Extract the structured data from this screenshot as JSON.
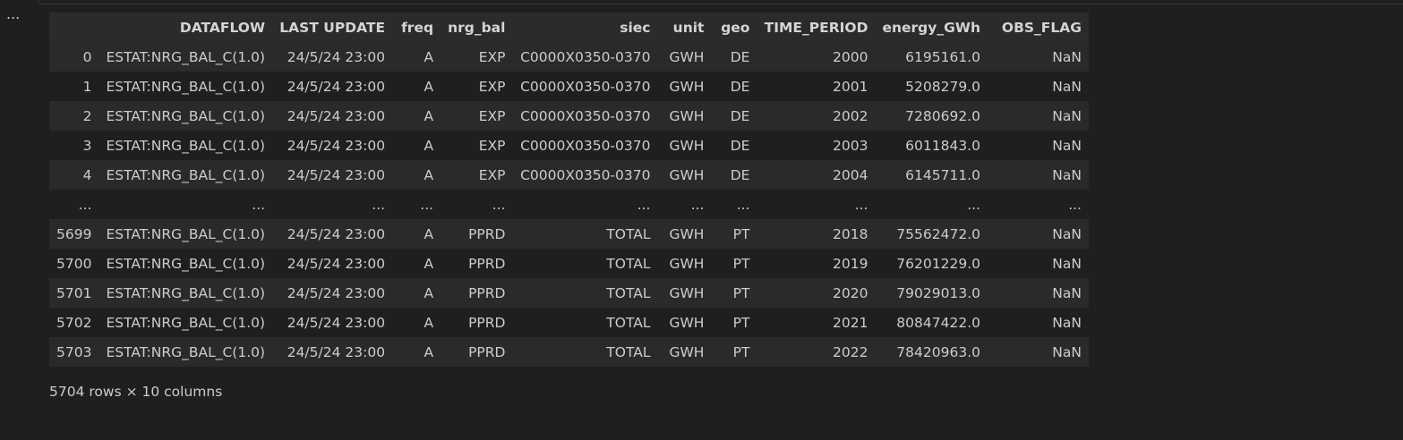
{
  "toolbar": {
    "more_label": "..."
  },
  "table": {
    "columns": [
      "",
      "DATAFLOW",
      "LAST UPDATE",
      "freq",
      "nrg_bal",
      "siec",
      "unit",
      "geo",
      "TIME_PERIOD",
      "energy_GWh",
      "OBS_FLAG"
    ],
    "rows": [
      [
        "0",
        "ESTAT:NRG_BAL_C(1.0)",
        "24/5/24 23:00",
        "A",
        "EXP",
        "C0000X0350-0370",
        "GWH",
        "DE",
        "2000",
        "6195161.0",
        "NaN"
      ],
      [
        "1",
        "ESTAT:NRG_BAL_C(1.0)",
        "24/5/24 23:00",
        "A",
        "EXP",
        "C0000X0350-0370",
        "GWH",
        "DE",
        "2001",
        "5208279.0",
        "NaN"
      ],
      [
        "2",
        "ESTAT:NRG_BAL_C(1.0)",
        "24/5/24 23:00",
        "A",
        "EXP",
        "C0000X0350-0370",
        "GWH",
        "DE",
        "2002",
        "7280692.0",
        "NaN"
      ],
      [
        "3",
        "ESTAT:NRG_BAL_C(1.0)",
        "24/5/24 23:00",
        "A",
        "EXP",
        "C0000X0350-0370",
        "GWH",
        "DE",
        "2003",
        "6011843.0",
        "NaN"
      ],
      [
        "4",
        "ESTAT:NRG_BAL_C(1.0)",
        "24/5/24 23:00",
        "A",
        "EXP",
        "C0000X0350-0370",
        "GWH",
        "DE",
        "2004",
        "6145711.0",
        "NaN"
      ],
      [
        "...",
        "...",
        "...",
        "...",
        "...",
        "...",
        "...",
        "...",
        "...",
        "...",
        "..."
      ],
      [
        "5699",
        "ESTAT:NRG_BAL_C(1.0)",
        "24/5/24 23:00",
        "A",
        "PPRD",
        "TOTAL",
        "GWH",
        "PT",
        "2018",
        "75562472.0",
        "NaN"
      ],
      [
        "5700",
        "ESTAT:NRG_BAL_C(1.0)",
        "24/5/24 23:00",
        "A",
        "PPRD",
        "TOTAL",
        "GWH",
        "PT",
        "2019",
        "76201229.0",
        "NaN"
      ],
      [
        "5701",
        "ESTAT:NRG_BAL_C(1.0)",
        "24/5/24 23:00",
        "A",
        "PPRD",
        "TOTAL",
        "GWH",
        "PT",
        "2020",
        "79029013.0",
        "NaN"
      ],
      [
        "5702",
        "ESTAT:NRG_BAL_C(1.0)",
        "24/5/24 23:00",
        "A",
        "PPRD",
        "TOTAL",
        "GWH",
        "PT",
        "2021",
        "80847422.0",
        "NaN"
      ],
      [
        "5703",
        "ESTAT:NRG_BAL_C(1.0)",
        "24/5/24 23:00",
        "A",
        "PPRD",
        "TOTAL",
        "GWH",
        "PT",
        "2022",
        "78420963.0",
        "NaN"
      ]
    ],
    "footer": "5704 rows × 10 columns"
  }
}
